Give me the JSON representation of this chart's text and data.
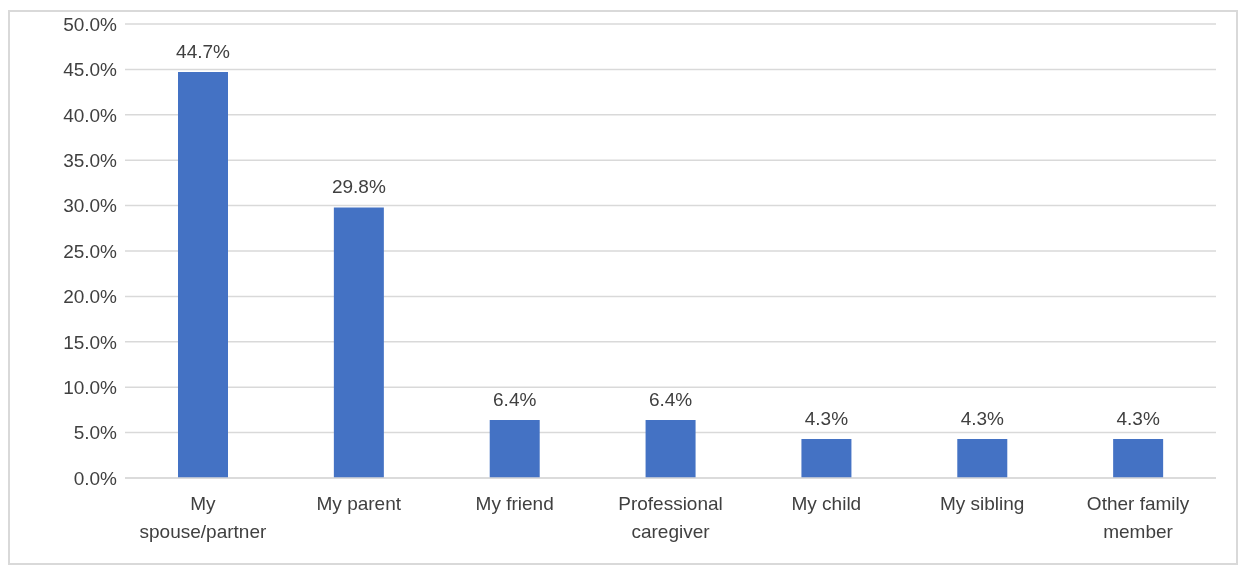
{
  "chart_data": {
    "type": "bar",
    "categories": [
      "My spouse/partner",
      "My parent",
      "My friend",
      "Professional caregiver",
      "My child",
      "My sibling",
      "Other family member"
    ],
    "values": [
      44.7,
      29.8,
      6.4,
      6.4,
      4.3,
      4.3,
      4.3
    ],
    "color": "#4472c4",
    "value_labels": [
      "44.7%",
      "29.8%",
      "6.4%",
      "6.4%",
      "4.3%",
      "4.3%",
      "4.3%"
    ],
    "ylim": [
      0,
      50
    ],
    "yticks": [
      {
        "value": 0,
        "label": "0.0%"
      },
      {
        "value": 5,
        "label": "5.0%"
      },
      {
        "value": 10,
        "label": "10.0%"
      },
      {
        "value": 15,
        "label": "15.0%"
      },
      {
        "value": 20,
        "label": "20.0%"
      },
      {
        "value": 25,
        "label": "25.0%"
      },
      {
        "value": 30,
        "label": "30.0%"
      },
      {
        "value": 35,
        "label": "35.0%"
      },
      {
        "value": 40,
        "label": "40.0%"
      },
      {
        "value": 45,
        "label": "45.0%"
      },
      {
        "value": 50,
        "label": "50.0%"
      }
    ],
    "grid": "y",
    "legend": false
  }
}
